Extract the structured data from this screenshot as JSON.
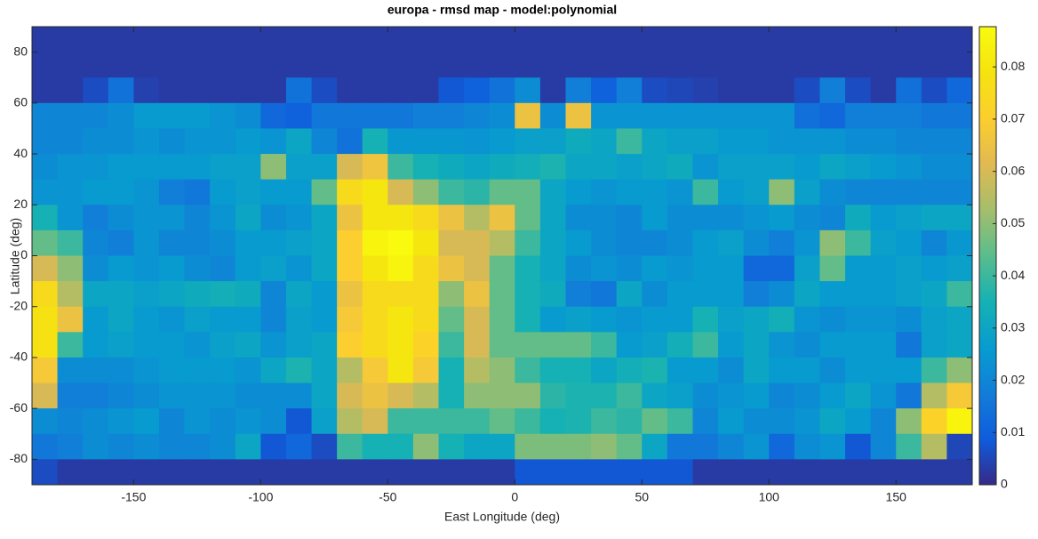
{
  "chart_data": {
    "type": "heatmap",
    "title": "europa - rmsd map - model:polynomial",
    "x_label": "East Longitude (deg)",
    "y_label": "Latitude (deg)",
    "colormap": "parula",
    "xlim": [
      -190,
      180
    ],
    "xticks": [
      -150,
      -100,
      -50,
      0,
      50,
      100,
      150
    ],
    "ylim": [
      -90,
      90
    ],
    "yticks": [
      -80,
      -60,
      -40,
      -20,
      0,
      20,
      40,
      60,
      80
    ],
    "clim": [
      0,
      0.0877
    ],
    "cticks": [
      0,
      0.01,
      0.02,
      0.03,
      0.04,
      0.05,
      0.06,
      0.07,
      0.08
    ],
    "x": [
      -185,
      -175,
      -165,
      -155,
      -145,
      -135,
      -125,
      -115,
      -105,
      -95,
      -85,
      -75,
      -65,
      -55,
      -45,
      -35,
      -25,
      -15,
      -5,
      5,
      15,
      25,
      35,
      45,
      55,
      65,
      75,
      85,
      95,
      105,
      115,
      125,
      135,
      145,
      155,
      165,
      175
    ],
    "y": [
      85,
      75,
      65,
      55,
      45,
      35,
      25,
      15,
      5,
      -5,
      -15,
      -25,
      -35,
      -45,
      -55,
      -65,
      -75,
      -85
    ],
    "z": [
      [
        0.003,
        0.003,
        0.003,
        0.003,
        0.003,
        0.003,
        0.003,
        0.003,
        0.003,
        0.003,
        0.003,
        0.003,
        0.003,
        0.003,
        0.003,
        0.003,
        0.003,
        0.003,
        0.003,
        0.003,
        0.003,
        0.003,
        0.003,
        0.003,
        0.003,
        0.003,
        0.003,
        0.003,
        0.003,
        0.003,
        0.003,
        0.003,
        0.003,
        0.003,
        0.003,
        0.003,
        0.003
      ],
      [
        0.003,
        0.003,
        0.003,
        0.003,
        0.003,
        0.003,
        0.003,
        0.003,
        0.003,
        0.003,
        0.003,
        0.003,
        0.003,
        0.003,
        0.003,
        0.003,
        0.003,
        0.003,
        0.003,
        0.003,
        0.003,
        0.003,
        0.003,
        0.003,
        0.003,
        0.003,
        0.003,
        0.003,
        0.003,
        0.003,
        0.003,
        0.003,
        0.003,
        0.003,
        0.003,
        0.003,
        0.003
      ],
      [
        0.003,
        0.003,
        0.006,
        0.015,
        0.004,
        0.003,
        0.003,
        0.003,
        0.003,
        0.003,
        0.015,
        0.006,
        0.003,
        0.003,
        0.003,
        0.003,
        0.008,
        0.01,
        0.015,
        0.022,
        0.003,
        0.018,
        0.01,
        0.018,
        0.006,
        0.005,
        0.004,
        0.003,
        0.003,
        0.003,
        0.006,
        0.018,
        0.006,
        0.003,
        0.014,
        0.006,
        0.012
      ],
      [
        0.02,
        0.02,
        0.02,
        0.022,
        0.026,
        0.026,
        0.026,
        0.024,
        0.022,
        0.012,
        0.01,
        0.016,
        0.016,
        0.016,
        0.016,
        0.018,
        0.018,
        0.02,
        0.022,
        0.065,
        0.022,
        0.065,
        0.024,
        0.024,
        0.024,
        0.024,
        0.024,
        0.024,
        0.024,
        0.024,
        0.014,
        0.012,
        0.018,
        0.018,
        0.018,
        0.016,
        0.016
      ],
      [
        0.02,
        0.02,
        0.022,
        0.022,
        0.024,
        0.022,
        0.024,
        0.024,
        0.026,
        0.024,
        0.03,
        0.02,
        0.015,
        0.035,
        0.025,
        0.025,
        0.025,
        0.024,
        0.026,
        0.028,
        0.028,
        0.032,
        0.03,
        0.04,
        0.03,
        0.028,
        0.028,
        0.026,
        0.026,
        0.024,
        0.024,
        0.024,
        0.022,
        0.022,
        0.02,
        0.02,
        0.02
      ],
      [
        0.022,
        0.024,
        0.024,
        0.026,
        0.026,
        0.026,
        0.026,
        0.028,
        0.028,
        0.05,
        0.028,
        0.028,
        0.06,
        0.066,
        0.04,
        0.035,
        0.032,
        0.03,
        0.032,
        0.034,
        0.036,
        0.03,
        0.03,
        0.028,
        0.03,
        0.032,
        0.024,
        0.028,
        0.028,
        0.028,
        0.026,
        0.03,
        0.028,
        0.026,
        0.024,
        0.022,
        0.022
      ],
      [
        0.024,
        0.024,
        0.026,
        0.026,
        0.024,
        0.018,
        0.016,
        0.026,
        0.028,
        0.026,
        0.026,
        0.045,
        0.075,
        0.08,
        0.06,
        0.05,
        0.04,
        0.038,
        0.045,
        0.045,
        0.03,
        0.026,
        0.024,
        0.026,
        0.026,
        0.024,
        0.04,
        0.026,
        0.028,
        0.05,
        0.028,
        0.022,
        0.02,
        0.02,
        0.02,
        0.02,
        0.02
      ],
      [
        0.035,
        0.024,
        0.018,
        0.022,
        0.024,
        0.024,
        0.02,
        0.024,
        0.03,
        0.022,
        0.024,
        0.03,
        0.065,
        0.08,
        0.08,
        0.075,
        0.065,
        0.055,
        0.065,
        0.045,
        0.03,
        0.022,
        0.022,
        0.02,
        0.026,
        0.022,
        0.022,
        0.022,
        0.024,
        0.026,
        0.022,
        0.02,
        0.032,
        0.026,
        0.028,
        0.03,
        0.03
      ],
      [
        0.045,
        0.04,
        0.02,
        0.018,
        0.024,
        0.02,
        0.02,
        0.022,
        0.026,
        0.026,
        0.028,
        0.03,
        0.07,
        0.085,
        0.0875,
        0.08,
        0.06,
        0.06,
        0.055,
        0.04,
        0.03,
        0.026,
        0.022,
        0.02,
        0.02,
        0.022,
        0.026,
        0.028,
        0.022,
        0.018,
        0.024,
        0.05,
        0.04,
        0.028,
        0.026,
        0.02,
        0.025
      ],
      [
        0.06,
        0.05,
        0.022,
        0.026,
        0.024,
        0.026,
        0.022,
        0.02,
        0.026,
        0.028,
        0.024,
        0.03,
        0.07,
        0.08,
        0.085,
        0.075,
        0.065,
        0.06,
        0.045,
        0.035,
        0.03,
        0.022,
        0.024,
        0.022,
        0.026,
        0.024,
        0.026,
        0.026,
        0.012,
        0.012,
        0.028,
        0.045,
        0.026,
        0.026,
        0.028,
        0.026,
        0.028
      ],
      [
        0.075,
        0.055,
        0.03,
        0.03,
        0.028,
        0.03,
        0.032,
        0.034,
        0.032,
        0.02,
        0.03,
        0.026,
        0.065,
        0.075,
        0.075,
        0.075,
        0.05,
        0.065,
        0.045,
        0.035,
        0.032,
        0.018,
        0.016,
        0.03,
        0.022,
        0.026,
        0.026,
        0.026,
        0.018,
        0.022,
        0.03,
        0.026,
        0.026,
        0.026,
        0.028,
        0.03,
        0.04
      ],
      [
        0.078,
        0.065,
        0.026,
        0.03,
        0.026,
        0.024,
        0.028,
        0.026,
        0.026,
        0.02,
        0.028,
        0.026,
        0.068,
        0.075,
        0.08,
        0.075,
        0.045,
        0.06,
        0.045,
        0.035,
        0.026,
        0.028,
        0.026,
        0.024,
        0.026,
        0.026,
        0.035,
        0.028,
        0.03,
        0.034,
        0.024,
        0.022,
        0.024,
        0.024,
        0.022,
        0.028,
        0.03
      ],
      [
        0.078,
        0.04,
        0.026,
        0.028,
        0.026,
        0.026,
        0.024,
        0.028,
        0.03,
        0.024,
        0.028,
        0.03,
        0.07,
        0.075,
        0.08,
        0.072,
        0.04,
        0.06,
        0.045,
        0.045,
        0.045,
        0.045,
        0.04,
        0.026,
        0.028,
        0.034,
        0.04,
        0.026,
        0.03,
        0.024,
        0.022,
        0.026,
        0.026,
        0.026,
        0.016,
        0.028,
        0.03
      ],
      [
        0.068,
        0.022,
        0.022,
        0.022,
        0.024,
        0.026,
        0.026,
        0.026,
        0.024,
        0.03,
        0.036,
        0.03,
        0.055,
        0.068,
        0.08,
        0.068,
        0.035,
        0.055,
        0.05,
        0.04,
        0.035,
        0.035,
        0.03,
        0.034,
        0.036,
        0.026,
        0.026,
        0.022,
        0.03,
        0.026,
        0.026,
        0.022,
        0.026,
        0.026,
        0.026,
        0.04,
        0.05
      ],
      [
        0.06,
        0.018,
        0.018,
        0.02,
        0.022,
        0.024,
        0.024,
        0.024,
        0.022,
        0.022,
        0.022,
        0.03,
        0.06,
        0.065,
        0.06,
        0.055,
        0.035,
        0.05,
        0.05,
        0.05,
        0.038,
        0.036,
        0.036,
        0.04,
        0.03,
        0.028,
        0.022,
        0.024,
        0.026,
        0.02,
        0.022,
        0.026,
        0.03,
        0.024,
        0.016,
        0.055,
        0.068
      ],
      [
        0.022,
        0.02,
        0.022,
        0.024,
        0.026,
        0.02,
        0.024,
        0.022,
        0.024,
        0.022,
        0.008,
        0.028,
        0.055,
        0.06,
        0.04,
        0.04,
        0.04,
        0.04,
        0.045,
        0.04,
        0.035,
        0.036,
        0.04,
        0.038,
        0.045,
        0.04,
        0.02,
        0.026,
        0.022,
        0.022,
        0.024,
        0.03,
        0.026,
        0.02,
        0.05,
        0.072,
        0.085
      ],
      [
        0.016,
        0.018,
        0.022,
        0.02,
        0.022,
        0.02,
        0.02,
        0.022,
        0.03,
        0.008,
        0.012,
        0.006,
        0.04,
        0.035,
        0.035,
        0.05,
        0.035,
        0.03,
        0.03,
        0.048,
        0.048,
        0.048,
        0.05,
        0.045,
        0.03,
        0.016,
        0.016,
        0.02,
        0.024,
        0.012,
        0.022,
        0.024,
        0.008,
        0.02,
        0.04,
        0.055,
        0.005
      ],
      [
        0.006,
        0.003,
        0.003,
        0.003,
        0.003,
        0.003,
        0.003,
        0.003,
        0.003,
        0.003,
        0.003,
        0.003,
        0.003,
        0.003,
        0.003,
        0.003,
        0.003,
        0.003,
        0.003,
        0.008,
        0.008,
        0.008,
        0.008,
        0.008,
        0.008,
        0.008,
        0.003,
        0.003,
        0.003,
        0.003,
        0.003,
        0.003,
        0.003,
        0.003,
        0.003,
        0.003,
        0.003
      ]
    ]
  }
}
